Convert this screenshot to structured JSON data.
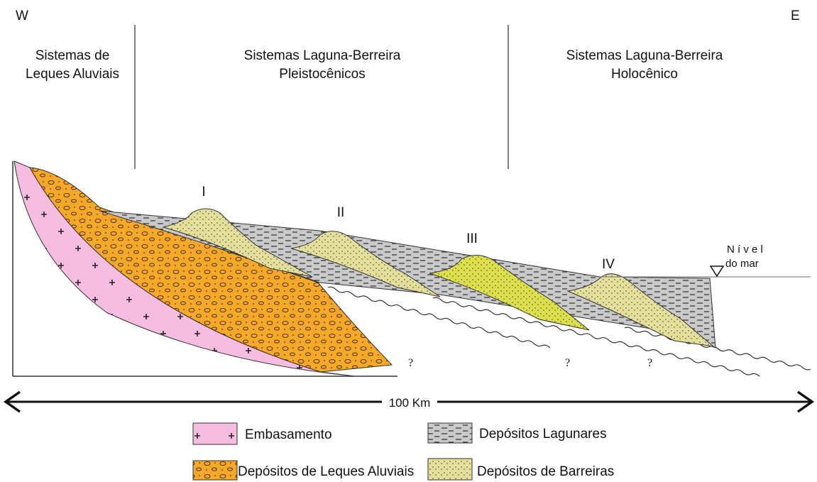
{
  "header": {
    "west": "W",
    "east": "E"
  },
  "systems": [
    {
      "lines": [
        "Sistemas de",
        "Leques Aluviais"
      ]
    },
    {
      "lines": [
        "Sistemas Laguna-Berreira",
        "Pleistocênicos"
      ]
    },
    {
      "lines": [
        "Sistemas Laguna-Berreira",
        "Holocênico"
      ]
    }
  ],
  "barriers": [
    "I",
    "II",
    "III",
    "IV"
  ],
  "sea_level": [
    "N í v e l",
    "do mar"
  ],
  "unknowns": [
    "?",
    "?",
    "?"
  ],
  "scale": "100 Km",
  "legend": [
    "Embasamento",
    "Depósitos Lagunares",
    "Depósitos de Leques Aluviais",
    "Depósitos de Barreiras"
  ]
}
